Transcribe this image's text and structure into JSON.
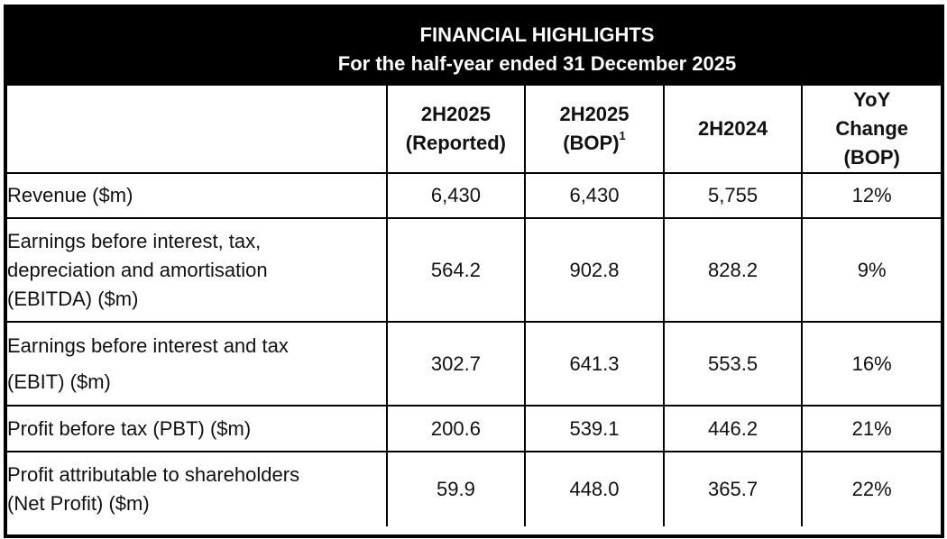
{
  "banner": {
    "title": "FINANCIAL HIGHLIGHTS",
    "subtitle": "For the half-year ended 31 December 2025"
  },
  "columns": [
    {
      "line1": "",
      "line2": "",
      "line3": ""
    },
    {
      "line1": "2H2025",
      "line2": "(Reported)",
      "line3": ""
    },
    {
      "line1": "2H2025",
      "line2": "(BOP)",
      "footnote": "1"
    },
    {
      "line1": "2H2024"
    },
    {
      "line1": "YoY",
      "line2": "Change",
      "line3": "(BOP)"
    }
  ],
  "rows": [
    {
      "label_lines": [
        "Revenue ($m)"
      ],
      "values": [
        "6,430",
        "6,430",
        "5,755",
        "12%"
      ]
    },
    {
      "label_lines": [
        "Earnings before interest, tax,",
        "depreciation and amortisation",
        "(EBITDA) ($m)"
      ],
      "values": [
        "564.2",
        "902.8",
        "828.2",
        "9%"
      ]
    },
    {
      "label_lines": [
        "Earnings before interest and tax",
        "(EBIT) ($m)"
      ],
      "values": [
        "302.7",
        "641.3",
        "553.5",
        "16%"
      ]
    },
    {
      "label_lines": [
        "Profit before tax (PBT) ($m)"
      ],
      "values": [
        "200.6",
        "539.1",
        "446.2",
        "21%"
      ]
    },
    {
      "label_lines": [
        "Profit attributable to shareholders",
        "(Net Profit) ($m)"
      ],
      "values": [
        "59.9",
        "448.0",
        "365.7",
        "22%"
      ]
    }
  ]
}
